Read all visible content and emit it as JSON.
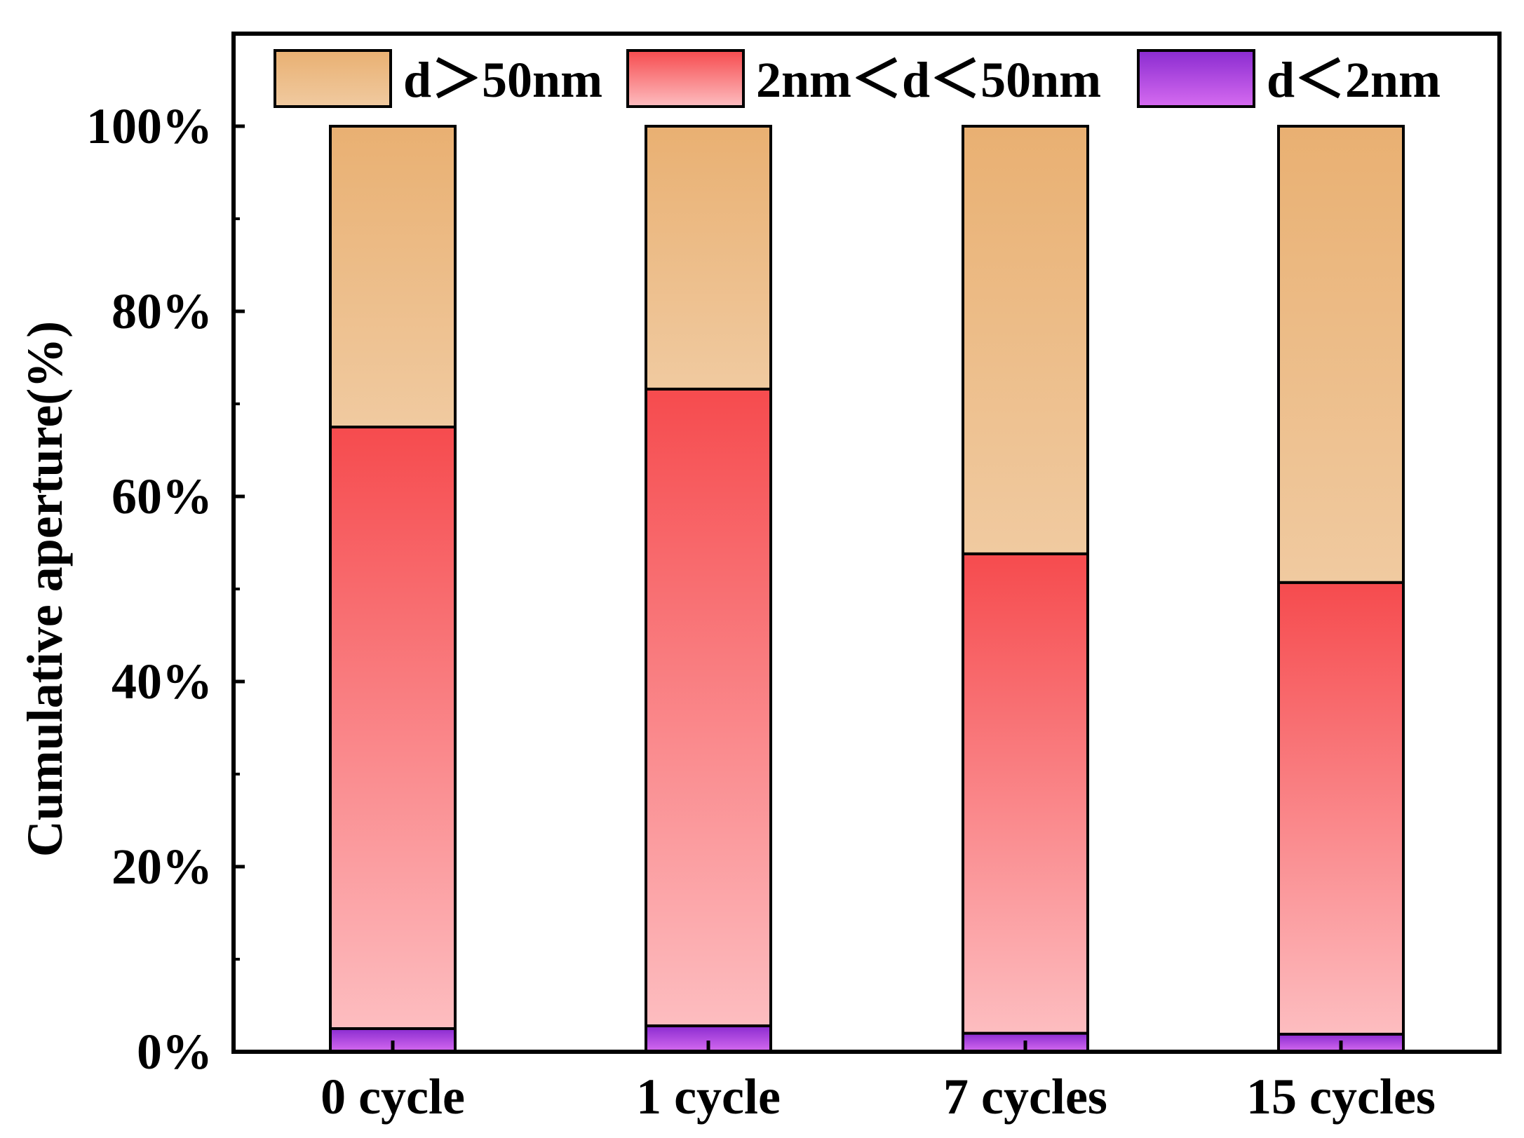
{
  "chart_data": {
    "type": "bar",
    "stacked": true,
    "title": "",
    "xlabel": "",
    "ylabel": "Cumulative aperture(%)",
    "ylim": [
      0,
      100
    ],
    "yticks": [
      0,
      20,
      40,
      60,
      80,
      100
    ],
    "ytick_labels": [
      "0%",
      "20%",
      "40%",
      "60%",
      "80%",
      "100%"
    ],
    "categories": [
      "0 cycle",
      "1 cycle",
      "7 cycles",
      "15 cycles"
    ],
    "series": [
      {
        "name": "d＜2nm",
        "values": [
          2.5,
          2.8,
          2.0,
          1.9
        ],
        "color_top": "#8a2bd0",
        "color_bottom": "#d66bf0"
      },
      {
        "name": "2nm＜d＜50nm",
        "values": [
          65.0,
          68.8,
          51.8,
          48.8
        ],
        "color_top": "#f64b4e",
        "color_bottom": "#fdbdc0"
      },
      {
        "name": "d＞50nm",
        "values": [
          32.5,
          28.4,
          46.2,
          49.3
        ],
        "color_top": "#e9b072",
        "color_bottom": "#f0caa0"
      }
    ],
    "legend": {
      "placement": "top",
      "order": [
        "d＞50nm",
        "2nm＜d＜50nm",
        "d＜2nm"
      ]
    },
    "grid": false
  }
}
